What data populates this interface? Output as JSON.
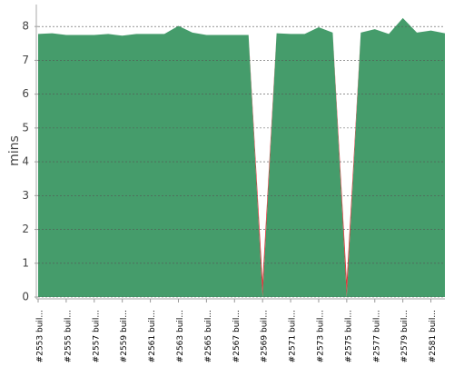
{
  "chart_data": {
    "type": "stacked-area",
    "y_label": "mins",
    "categories": [
      "#2553 buil...",
      null,
      "#2555 buil...",
      null,
      "#2557 buil...",
      null,
      "#2559 buil...",
      null,
      "#2561 buil...",
      null,
      "#2563 buil...",
      null,
      "#2565 buil...",
      null,
      "#2567 buil...",
      null,
      "#2569 buil...",
      null,
      "#2571 buil...",
      null,
      "#2573 buil...",
      null,
      "#2575 buil...",
      null,
      "#2577 buil...",
      null,
      "#2579 buil...",
      null,
      "#2581 buil...",
      null
    ],
    "series": [
      {
        "color": "#459c6b",
        "values": [
          7.78,
          7.8,
          7.75,
          7.75,
          7.75,
          7.78,
          7.73,
          7.78,
          7.78,
          7.78,
          8.02,
          7.82,
          7.75,
          7.75,
          7.75,
          7.75,
          0,
          7.8,
          7.78,
          7.78,
          7.98,
          7.82,
          0,
          7.82,
          7.92,
          7.78,
          8.25,
          7.82,
          7.88,
          7.8
        ]
      },
      {
        "color": "#d93638",
        "values": [
          0,
          0,
          0,
          0,
          0,
          0,
          0,
          0,
          0,
          0,
          0,
          0,
          0,
          0,
          0,
          0,
          0.5,
          0,
          0,
          0,
          0,
          0,
          0.5,
          0,
          0,
          0,
          0,
          0,
          0,
          0
        ]
      }
    ],
    "ylim": [
      0,
      8.65
    ],
    "yticks": [
      0,
      1,
      2,
      3,
      4,
      5,
      6,
      7,
      8
    ],
    "grid": true
  }
}
